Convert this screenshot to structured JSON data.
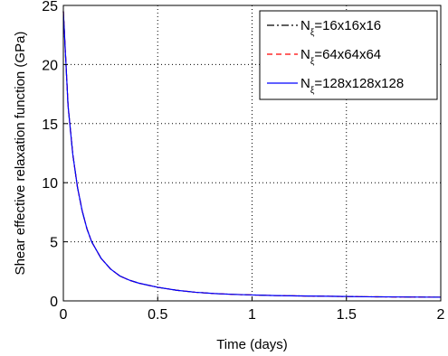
{
  "chart_data": {
    "type": "line",
    "xlabel": "Time (days)",
    "ylabel": "Shear effective relaxation function (GPa)",
    "xlim": [
      0,
      2
    ],
    "ylim": [
      0,
      25
    ],
    "grid": true,
    "legend_position": "top-right",
    "x_ticks": [
      "0",
      "0.5",
      "1",
      "1.5",
      "2"
    ],
    "y_ticks": [
      "0",
      "5",
      "10",
      "15",
      "20",
      "25"
    ],
    "x": [
      0,
      0.025,
      0.05,
      0.075,
      0.1,
      0.125,
      0.15,
      0.2,
      0.25,
      0.3,
      0.35,
      0.4,
      0.5,
      0.6,
      0.7,
      0.8,
      0.9,
      1.0,
      1.1,
      1.2,
      1.3,
      1.4,
      1.5,
      1.6,
      1.7,
      1.8,
      1.9,
      2.0
    ],
    "series": [
      {
        "name": "N_ξ=16x16x16",
        "legend_main": "N",
        "legend_sub": "ξ",
        "legend_rest": "=16x16x16",
        "color": "#000000",
        "dash": "dashdot",
        "values": [
          24.5,
          16.5,
          12.4,
          9.6,
          7.6,
          6.1,
          5.0,
          3.6,
          2.7,
          2.1,
          1.75,
          1.5,
          1.15,
          0.9,
          0.73,
          0.62,
          0.55,
          0.5,
          0.46,
          0.43,
          0.41,
          0.39,
          0.37,
          0.35,
          0.34,
          0.33,
          0.32,
          0.31
        ]
      },
      {
        "name": "N_ξ=64x64x64",
        "legend_main": "N",
        "legend_sub": "ξ",
        "legend_rest": "=64x64x64",
        "color": "#ff0000",
        "dash": "dashed",
        "values": [
          24.5,
          16.5,
          12.4,
          9.6,
          7.6,
          6.1,
          5.0,
          3.6,
          2.7,
          2.1,
          1.75,
          1.5,
          1.15,
          0.9,
          0.73,
          0.62,
          0.55,
          0.5,
          0.46,
          0.43,
          0.41,
          0.39,
          0.37,
          0.35,
          0.34,
          0.33,
          0.32,
          0.31
        ]
      },
      {
        "name": "N_ξ=128x128x128",
        "legend_main": "N",
        "legend_sub": "ξ",
        "legend_rest": "=128x128x128",
        "color": "#0000ff",
        "dash": "solid",
        "values": [
          24.5,
          16.5,
          12.4,
          9.6,
          7.6,
          6.1,
          5.0,
          3.6,
          2.7,
          2.1,
          1.75,
          1.5,
          1.15,
          0.9,
          0.73,
          0.62,
          0.55,
          0.5,
          0.46,
          0.43,
          0.41,
          0.39,
          0.37,
          0.35,
          0.34,
          0.33,
          0.32,
          0.31
        ]
      }
    ]
  }
}
